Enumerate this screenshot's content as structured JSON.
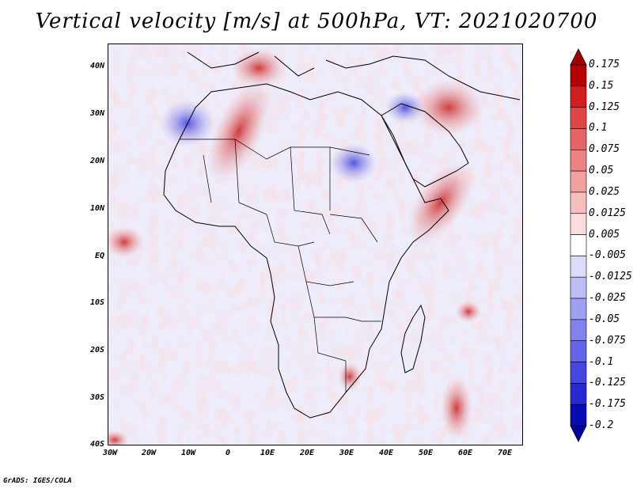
{
  "title": "Vertical velocity [m/s] at 500hPa, VT: 2021020700",
  "credit": "GrADS: IGES/COLA",
  "map": {
    "region": "Africa",
    "lon_range": [
      -30,
      75
    ],
    "lat_range": [
      -40,
      45
    ],
    "y_ticks": [
      "40N",
      "30N",
      "20N",
      "10N",
      "EQ",
      "10S",
      "20S",
      "30S",
      "40S"
    ],
    "x_ticks": [
      "30W",
      "20W",
      "10W",
      "0",
      "10E",
      "20E",
      "30E",
      "40E",
      "50E",
      "60E",
      "70E"
    ]
  },
  "colorbar": {
    "levels": [
      "0.175",
      "0.15",
      "0.125",
      "0.1",
      "0.075",
      "0.05",
      "0.025",
      "0.0125",
      "0.005",
      "-0.005",
      "-0.0125",
      "-0.025",
      "-0.05",
      "-0.075",
      "-0.1",
      "-0.125",
      "-0.175",
      "-0.2"
    ],
    "colors": [
      "#b40000",
      "#d21e1e",
      "#e04646",
      "#e86464",
      "#ee8282",
      "#f2a0a0",
      "#f6bebe",
      "#fadcdc",
      "#ffffff",
      "#dcdcfa",
      "#bebef6",
      "#a0a0f2",
      "#8282ee",
      "#6464e8",
      "#4646e0",
      "#2828d2",
      "#0a0ab4"
    ],
    "top_arrow_color": "#a00000",
    "bottom_arrow_color": "#0000a0"
  }
}
